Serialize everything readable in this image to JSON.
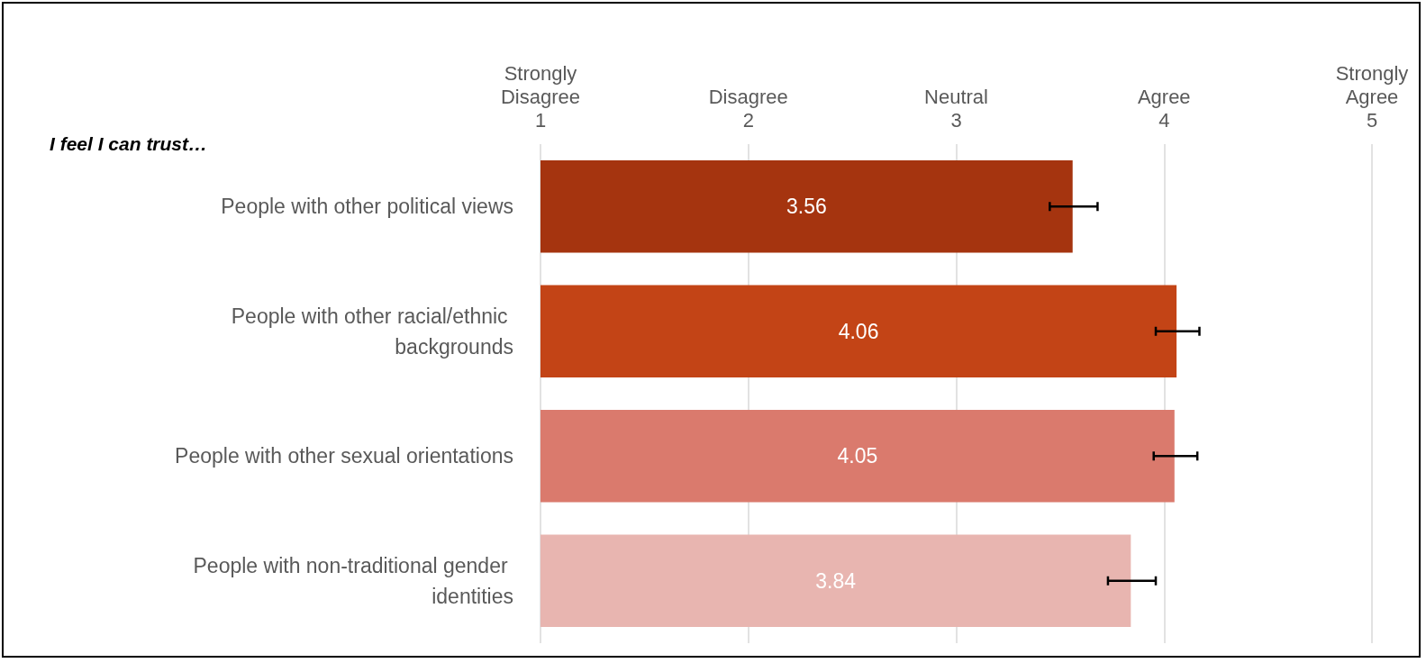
{
  "chart_data": {
    "type": "bar",
    "orientation": "horizontal",
    "title": "I feel I can trust…",
    "categories": [
      "People with other political views",
      "People with other racial/ethnic backgrounds",
      "People with other sexual orientations",
      "People with non-traditional gender identities"
    ],
    "values": [
      3.56,
      4.06,
      4.05,
      3.84
    ],
    "colors": [
      "#a5340f",
      "#c34416",
      "#da7a6d",
      "#e8b5b0"
    ],
    "errors": [
      [
        3.45,
        3.68
      ],
      [
        3.96,
        4.17
      ],
      [
        3.95,
        4.16
      ],
      [
        3.73,
        3.96
      ]
    ],
    "xlim": [
      1,
      5
    ],
    "xticks": [
      1,
      2,
      3,
      4,
      5
    ],
    "annotations": [
      "Strongly\nDisagree",
      "Disagree",
      "Neutral",
      "Agree",
      "Strongly\nAgree"
    ],
    "grid": "x",
    "data_labels": true
  }
}
